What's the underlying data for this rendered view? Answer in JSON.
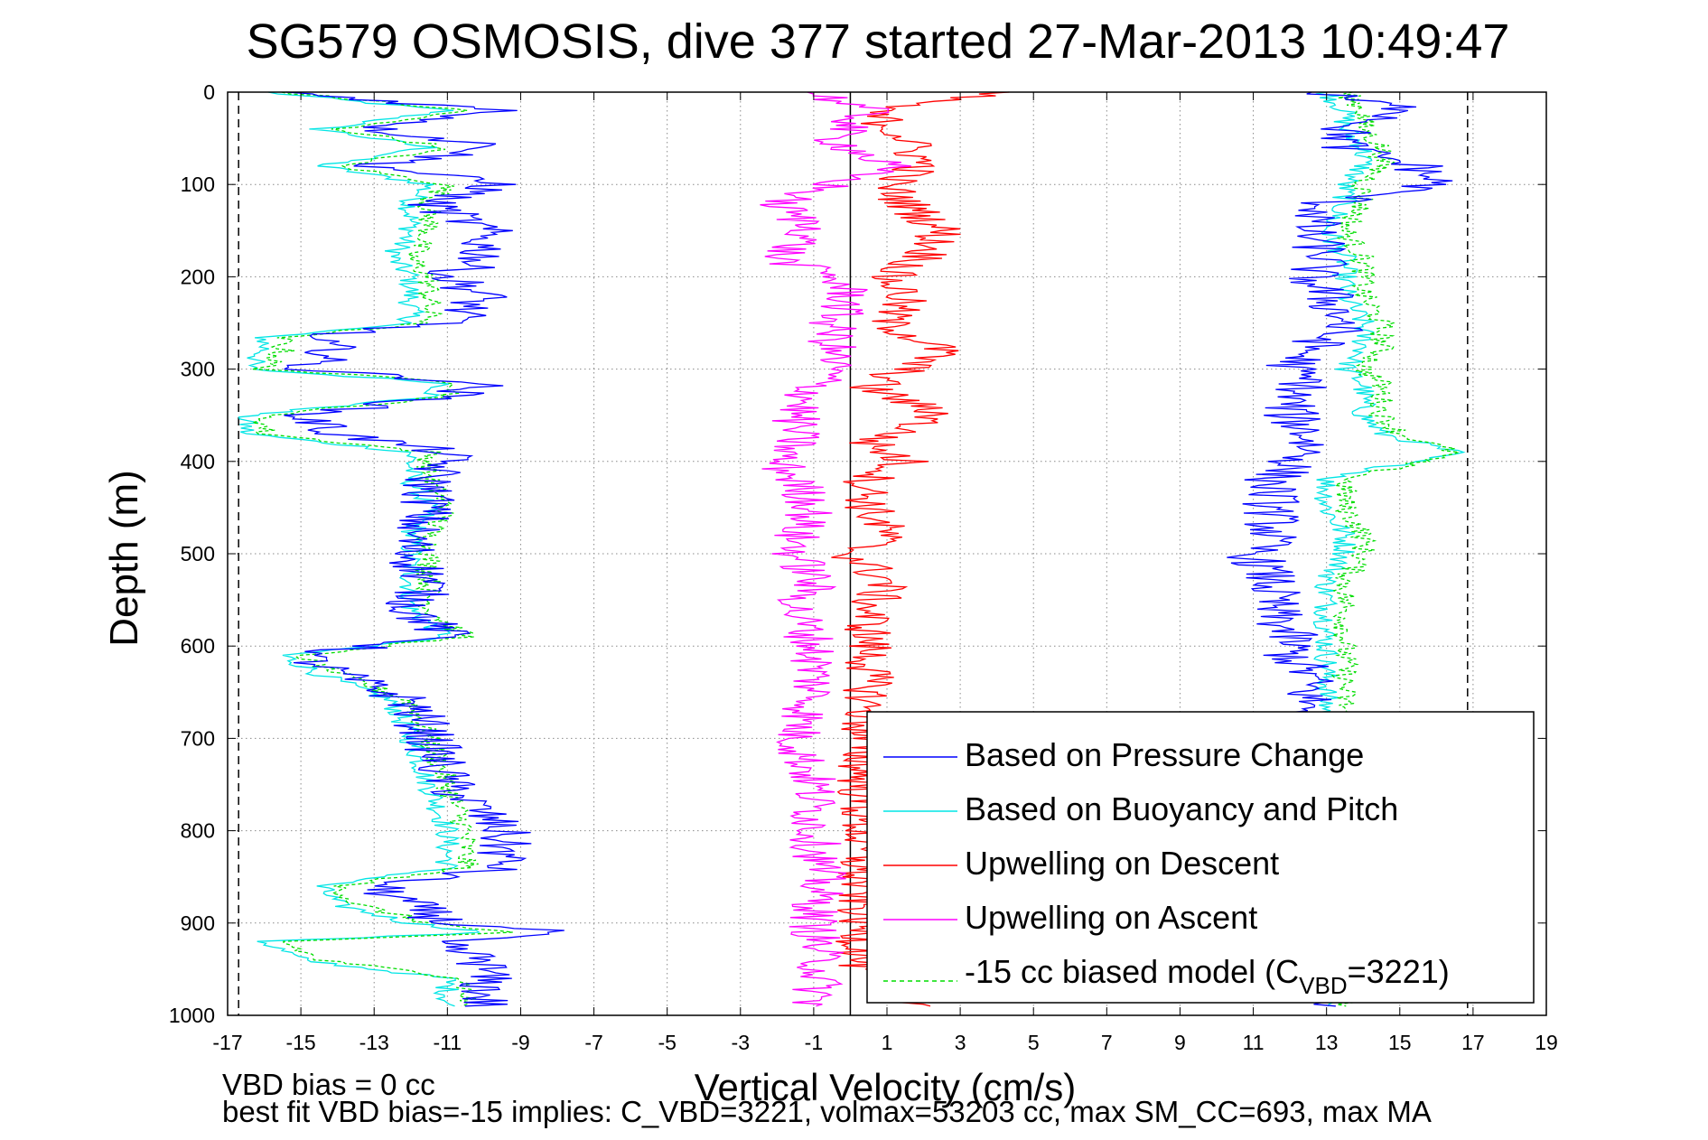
{
  "chart_data": {
    "type": "line",
    "title": "SG579 OSMOSIS, dive 377 started 27-Mar-2013 10:49:47",
    "xlabel": "Vertical Velocity (cm/s)",
    "ylabel": "Depth (m)",
    "xlim": [
      -17,
      19
    ],
    "ylim": [
      1000,
      0
    ],
    "y_reversed": true,
    "xticks": [
      -17,
      -15,
      -13,
      -11,
      -9,
      -7,
      -5,
      -3,
      -1,
      1,
      3,
      5,
      7,
      9,
      11,
      13,
      15,
      17,
      19
    ],
    "yticks": [
      0,
      100,
      200,
      300,
      400,
      500,
      600,
      700,
      800,
      900,
      1000
    ],
    "grid": true,
    "legend_position": "bottom-right",
    "reference_lines": [
      {
        "x": -16.7,
        "style": "dashed"
      },
      {
        "x": 16.85,
        "style": "dashed"
      },
      {
        "x": 0,
        "style": "solid"
      }
    ],
    "series": [
      {
        "name": "Based on Pressure Change",
        "color": "#0000ff",
        "style": "solid",
        "depth": [
          0,
          20,
          40,
          60,
          80,
          100,
          120,
          150,
          180,
          200,
          220,
          250,
          265,
          280,
          300,
          315,
          330,
          350,
          370,
          390,
          420,
          450,
          480,
          500,
          530,
          560,
          590,
          610,
          630,
          660,
          700,
          750,
          800,
          840,
          860,
          880,
          900,
          910,
          920,
          940,
          960,
          990
        ],
        "descent_velocity": [
          -15.5,
          -9.5,
          -13,
          -9.5,
          -13,
          -9.5,
          -11.5,
          -10,
          -10,
          -11,
          -10,
          -11,
          -15,
          -14,
          -15,
          -10,
          -11,
          -15,
          -14,
          -11,
          -11.5,
          -11.5,
          -12,
          -12,
          -11.5,
          -12,
          -11,
          -15,
          -14,
          -12,
          -11.5,
          -11,
          -9.5,
          -9.5,
          -13,
          -12,
          -11,
          -8,
          -11.5,
          -10,
          -10,
          -10
        ],
        "ascent_velocity": [
          12.5,
          15.5,
          13.5,
          13.5,
          15.5,
          16,
          13,
          12.5,
          13,
          12.5,
          13,
          13.5,
          13,
          12.5,
          12,
          12.5,
          12,
          12,
          12.5,
          12.5,
          11.5,
          11.5,
          11.5,
          11,
          11.5,
          11.5,
          12,
          12,
          12.5,
          12.5,
          12.5,
          12.5,
          12.5,
          12.5,
          12.5,
          12.5,
          12.5,
          12.5,
          12.5,
          12.5,
          12.5,
          12.5
        ]
      },
      {
        "name": "Based on Buoyancy and Pitch",
        "color": "#00e5e5",
        "style": "solid",
        "depth": [
          0,
          20,
          40,
          60,
          80,
          100,
          120,
          150,
          180,
          200,
          220,
          250,
          265,
          280,
          300,
          315,
          330,
          350,
          370,
          390,
          420,
          450,
          480,
          500,
          530,
          560,
          590,
          610,
          630,
          660,
          700,
          750,
          800,
          840,
          860,
          880,
          900,
          910,
          920,
          940,
          960,
          990
        ],
        "descent_velocity": [
          -16,
          -11,
          -14.5,
          -11.5,
          -14.5,
          -11.5,
          -12,
          -12,
          -12.5,
          -12,
          -12,
          -12,
          -16,
          -16,
          -16.5,
          -11,
          -11.5,
          -16.5,
          -16.5,
          -12,
          -12,
          -11.5,
          -12,
          -12,
          -12,
          -12,
          -11,
          -15.5,
          -14.5,
          -12.5,
          -12,
          -11.5,
          -11,
          -11,
          -14.5,
          -14,
          -12,
          -10,
          -16,
          -15,
          -11,
          -11
        ],
        "ascent_velocity": [
          13,
          13.5,
          13.5,
          14,
          14,
          13.5,
          13.5,
          13,
          13.5,
          13.5,
          13.5,
          14,
          14,
          14,
          13.5,
          14,
          14,
          14,
          14.5,
          16.5,
          13,
          13,
          13.5,
          13.5,
          13,
          13,
          13,
          13,
          13,
          13,
          13,
          13,
          13,
          13,
          13,
          13,
          13,
          13,
          13,
          13,
          13,
          13
        ]
      },
      {
        "name": "Upwelling on Descent",
        "color": "#ff0000",
        "style": "solid",
        "depth": [
          0,
          20,
          50,
          80,
          100,
          120,
          150,
          180,
          200,
          220,
          250,
          280,
          300,
          320,
          350,
          380,
          400,
          420,
          450,
          480,
          500,
          530,
          560,
          600,
          650,
          700,
          750,
          800,
          850,
          900,
          950,
          990
        ],
        "values": [
          4,
          0.5,
          1.5,
          2,
          1,
          1.5,
          2.5,
          2,
          1,
          1.5,
          1,
          2.5,
          1.5,
          0.5,
          2.5,
          0.5,
          1.5,
          0.5,
          0.5,
          1,
          0,
          1,
          0.5,
          0.5,
          0.5,
          0.3,
          0.3,
          0.3,
          0.2,
          0.3,
          0.3,
          2
        ]
      },
      {
        "name": "Upwelling on Ascent",
        "color": "#ff00ff",
        "style": "solid",
        "depth": [
          0,
          20,
          50,
          80,
          100,
          120,
          150,
          180,
          200,
          220,
          250,
          280,
          300,
          320,
          350,
          380,
          400,
          420,
          450,
          480,
          500,
          530,
          560,
          600,
          650,
          700,
          750,
          800,
          850,
          900,
          950,
          990
        ],
        "values": [
          -1,
          0.5,
          -0.5,
          1,
          -0.5,
          -2,
          -1,
          -2,
          -0.5,
          0,
          -0.5,
          -0.5,
          -0.5,
          -1,
          -1.5,
          -1.5,
          -2,
          -1.5,
          -1,
          -1.5,
          -1.5,
          -1,
          -1.5,
          -1,
          -1,
          -1.5,
          -1,
          -1,
          -0.8,
          -1,
          -0.8,
          -1
        ]
      },
      {
        "name": "-15 cc biased model (C_VBD=3221)",
        "color": "#00dd00",
        "style": "dashed",
        "depth": [
          0,
          20,
          40,
          60,
          80,
          100,
          120,
          150,
          180,
          200,
          220,
          250,
          265,
          280,
          300,
          315,
          330,
          350,
          370,
          390,
          420,
          450,
          480,
          500,
          530,
          560,
          590,
          610,
          630,
          660,
          700,
          750,
          800,
          840,
          860,
          880,
          900,
          910,
          920,
          940,
          960,
          990
        ],
        "descent_velocity": [
          -15.5,
          -10.5,
          -14,
          -11,
          -14,
          -11,
          -11.5,
          -11.5,
          -12,
          -11.5,
          -11.5,
          -11.5,
          -15.5,
          -15.5,
          -16,
          -10.5,
          -11,
          -16,
          -16,
          -11.5,
          -11.5,
          -11,
          -11.5,
          -11.5,
          -11.5,
          -11.5,
          -10.5,
          -15,
          -14,
          -12,
          -11.5,
          -11,
          -10.5,
          -10.5,
          -14,
          -13.5,
          -11.5,
          -9.5,
          -15.5,
          -14.5,
          -10.5,
          -10.5
        ],
        "ascent_velocity": [
          13.5,
          14,
          14,
          14.5,
          14.5,
          14,
          14,
          13.5,
          14,
          14,
          14,
          14.5,
          14.5,
          14.5,
          14,
          14.5,
          14.5,
          14.5,
          15,
          16.5,
          13.5,
          13.5,
          14,
          14,
          13.5,
          13.5,
          13.5,
          13.5,
          13.5,
          13.5,
          13.5,
          13.5,
          13.5,
          13.5,
          13.5,
          13.5,
          13.5,
          13.5,
          13.5,
          13.5,
          13.5,
          13.5
        ]
      }
    ],
    "legend": [
      {
        "label": "Based on Pressure Change",
        "color": "#0000ff",
        "style": "solid"
      },
      {
        "label": "Based on Buoyancy and Pitch",
        "color": "#00e5e5",
        "style": "solid"
      },
      {
        "label": "Upwelling on Descent",
        "color": "#ff0000",
        "style": "solid"
      },
      {
        "label": "Upwelling on Ascent",
        "color": "#ff00ff",
        "style": "solid"
      },
      {
        "label": "-15 cc biased model (C",
        "sub": "VBD",
        "suffix": "=3221)",
        "color": "#00dd00",
        "style": "dashed"
      }
    ]
  },
  "notes": {
    "line1": "VBD bias = 0 cc",
    "line2": "best fit VBD bias=-15 implies: C_VBD=3221, volmax=53203 cc, max SM_CC=693, max MA"
  }
}
